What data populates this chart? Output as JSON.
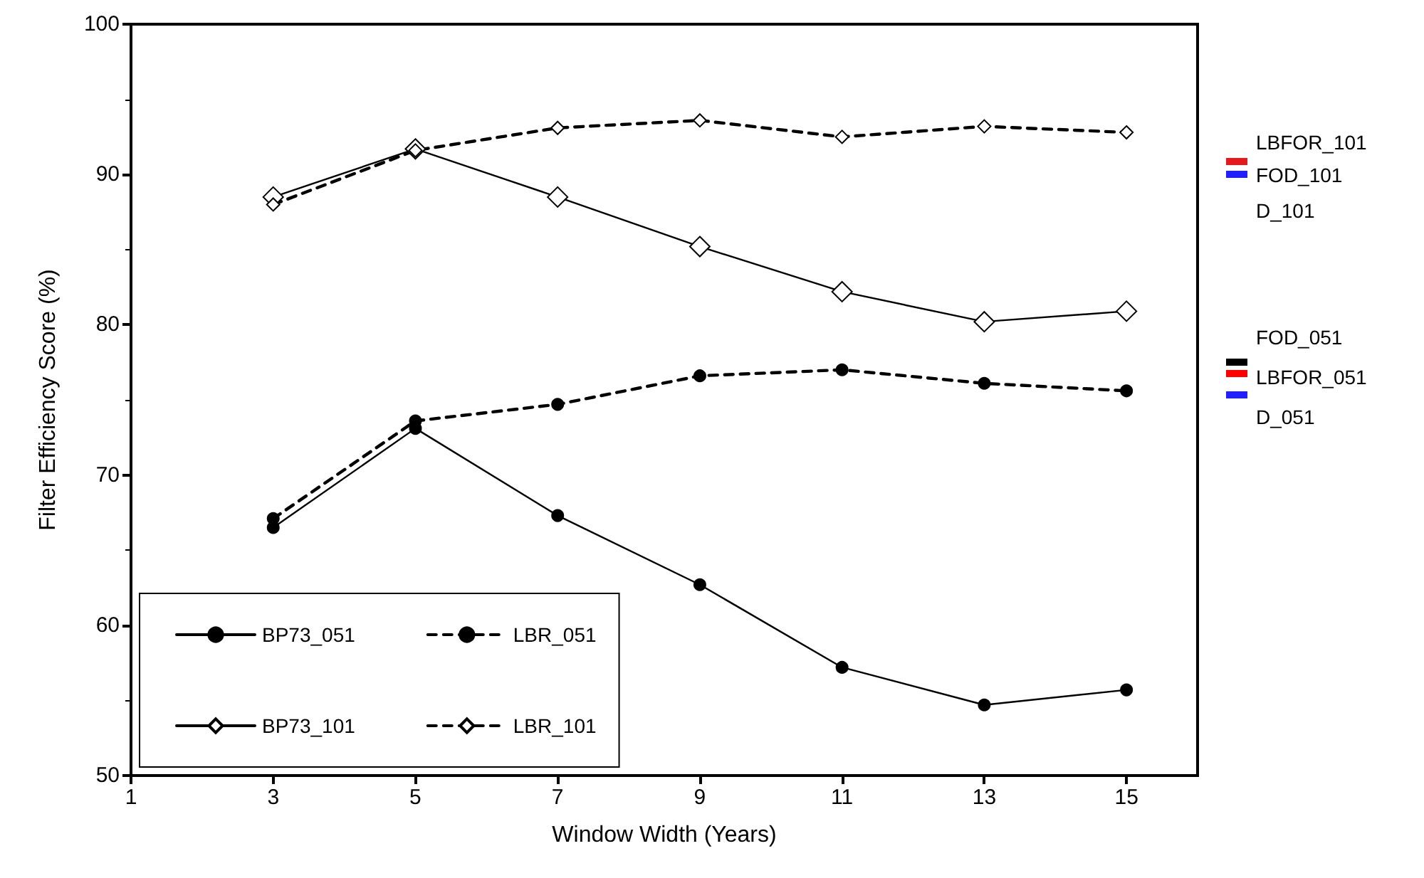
{
  "chart_data": {
    "type": "line",
    "xlabel": "Window Width (Years)",
    "ylabel": "Filter Efficiency Score (%)",
    "x": [
      3,
      5,
      7,
      9,
      11,
      13,
      15
    ],
    "xlim": [
      1,
      16
    ],
    "xticks": [
      1,
      3,
      5,
      7,
      9,
      11,
      13,
      15
    ],
    "ylim": [
      50,
      100
    ],
    "yticks": [
      50,
      60,
      70,
      80,
      90,
      100
    ],
    "grid": false,
    "legend": "bottom left",
    "annotations": [
      "LBFOR_101",
      "FOD_101",
      "D_101",
      "FOD_051",
      "LBFOR_051",
      "D_051"
    ],
    "series": [
      {
        "name": "BP73_051",
        "color": "#000000",
        "marker": "circle",
        "line_style": "solid",
        "values": [
          66.5,
          73.1,
          67.3,
          62.7,
          57.2,
          54.7,
          55.7
        ]
      },
      {
        "name": "LBR_051",
        "color": "#000000",
        "marker": "circle",
        "line_style": "dashed",
        "values": [
          67.1,
          73.6,
          74.7,
          76.6,
          77.0,
          76.1,
          75.6
        ]
      },
      {
        "name": "BP73_101",
        "color": "#000000",
        "marker": "diamond",
        "line_style": "solid",
        "values": [
          88.5,
          91.7,
          88.5,
          85.2,
          82.2,
          80.2,
          80.9
        ]
      },
      {
        "name": "LBR_101",
        "color": "#000000",
        "marker": "diamond",
        "line_style": "dashed",
        "values": [
          88.0,
          91.6,
          93.1,
          93.6,
          92.5,
          93.2,
          92.8
        ]
      }
    ]
  }
}
